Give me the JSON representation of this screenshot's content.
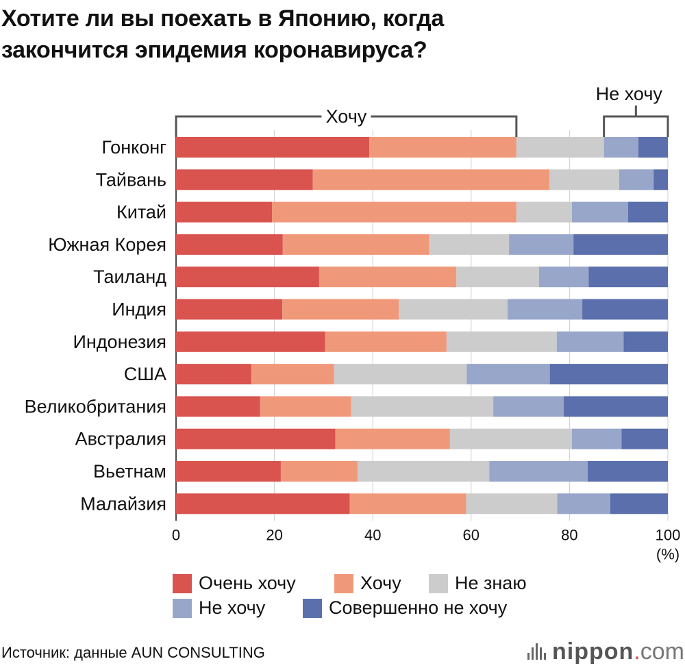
{
  "title": {
    "line1": "Хотите ли вы поехать в Японию, когда",
    "line2": "закончится эпидемия коронавируса?"
  },
  "brackets": {
    "want": "Хочу",
    "dont_want": "Не хочу"
  },
  "chart_data": {
    "type": "bar",
    "orientation": "horizontal",
    "stacked": true,
    "categories": [
      "Гонконг",
      "Тайвань",
      "Китай",
      "Южная Корея",
      "Таиланд",
      "Индия",
      "Индонезия",
      "США",
      "Великобритания",
      "Австралия",
      "Вьетнам",
      "Малайзия"
    ],
    "series": [
      {
        "name": "Очень хочу",
        "color": "#d9534f",
        "values": [
          39.3,
          27.8,
          19.5,
          21.7,
          29.1,
          21.6,
          30.3,
          15.3,
          17.1,
          32.4,
          21.3,
          35.3
        ]
      },
      {
        "name": "Хочу",
        "color": "#f0997a",
        "values": [
          29.9,
          48.1,
          49.7,
          29.8,
          27.9,
          23.7,
          24.7,
          16.8,
          18.5,
          23.3,
          15.6,
          23.7
        ]
      },
      {
        "name": "Не знаю",
        "color": "#cccccc",
        "values": [
          17.8,
          14.2,
          11.3,
          16.2,
          16.8,
          22.1,
          22.4,
          27.0,
          28.9,
          24.8,
          26.8,
          18.5
        ]
      },
      {
        "name": "Не хочу",
        "color": "#98a6ca",
        "values": [
          7.0,
          7.0,
          11.4,
          13.1,
          10.1,
          15.2,
          13.6,
          16.9,
          14.3,
          10.1,
          20.0,
          10.8
        ]
      },
      {
        "name": "Совершенно не хочу",
        "color": "#5a6fab",
        "values": [
          6.0,
          2.9,
          8.1,
          19.2,
          16.1,
          17.4,
          9.0,
          24.0,
          21.2,
          9.4,
          16.3,
          11.7
        ]
      }
    ],
    "xlim": [
      0,
      100
    ],
    "xticks": [
      0,
      20,
      40,
      60,
      80,
      100
    ],
    "xunit": "(%)",
    "legend_position": "bottom"
  },
  "legend": {
    "items": [
      "Очень хочу",
      "Хочу",
      "Не знаю",
      "Не хочу",
      "Совершенно не хочу"
    ],
    "colors": [
      "#d9534f",
      "#f0997a",
      "#cccccc",
      "#98a6ca",
      "#5a6fab"
    ]
  },
  "source": "Источник: данные AUN CONSULTING",
  "brand": {
    "name": "nippon",
    "dot": ".",
    "tld": "com"
  }
}
